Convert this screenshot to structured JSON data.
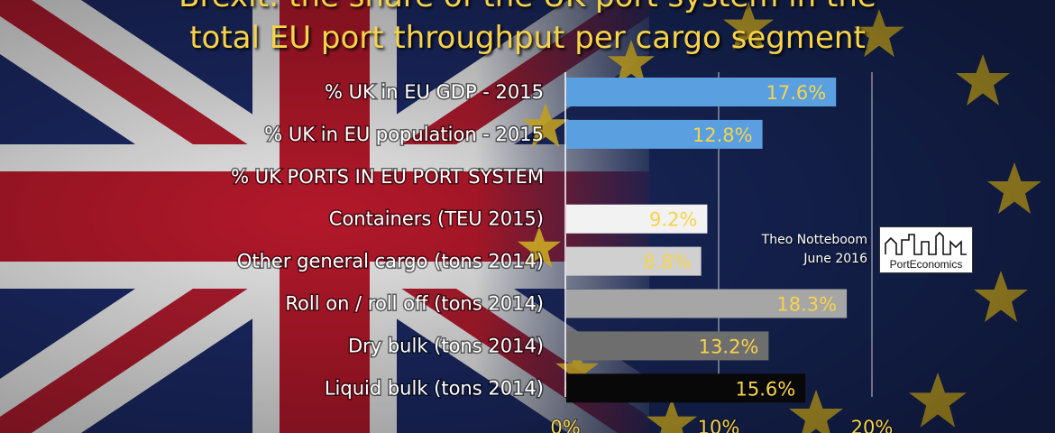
{
  "title": {
    "line1": "Brexit: the share of the UK port system in the",
    "line2": "total EU port throughput per cargo segment"
  },
  "credit": {
    "author": "Theo Notteboom",
    "date": "June 2016"
  },
  "logo": {
    "text": "PortEconomics"
  },
  "colors": {
    "value_label": "#f7d34a",
    "axis_line": "#ffffff",
    "title": "#f7d34a"
  },
  "chart_data": {
    "type": "bar",
    "orientation": "horizontal",
    "title": "Brexit: the share of the UK port system in the total EU port throughput per cargo segment",
    "xlabel": "",
    "ylabel": "",
    "xlim": [
      0,
      0.2
    ],
    "x_ticks": [
      "0%",
      "10%",
      "20%"
    ],
    "grid": "vertical lines at 10% and 20%",
    "categories": [
      "% UK in EU GDP - 2015",
      "% UK in EU population - 2015",
      "% UK PORTS IN EU PORT SYSTEM",
      "Containers (TEU 2015)",
      "Other general cargo (tons 2014)",
      "Roll on / roll off (tons 2014)",
      "Dry bulk (tons 2014)",
      "Liquid bulk (tons 2014)"
    ],
    "values": [
      0.176,
      0.128,
      null,
      0.092,
      0.088,
      0.183,
      0.132,
      0.156
    ],
    "value_labels": [
      "17.6%",
      "12.8%",
      "",
      "9.2%",
      "8.8%",
      "18.3%",
      "13.2%",
      "15.6%"
    ],
    "bar_colors": [
      "#5aa0e0",
      "#5aa0e0",
      "none",
      "#f2f2f2",
      "#d0d0d0",
      "#a6a6a6",
      "#6e6e6e",
      "#080808"
    ]
  }
}
